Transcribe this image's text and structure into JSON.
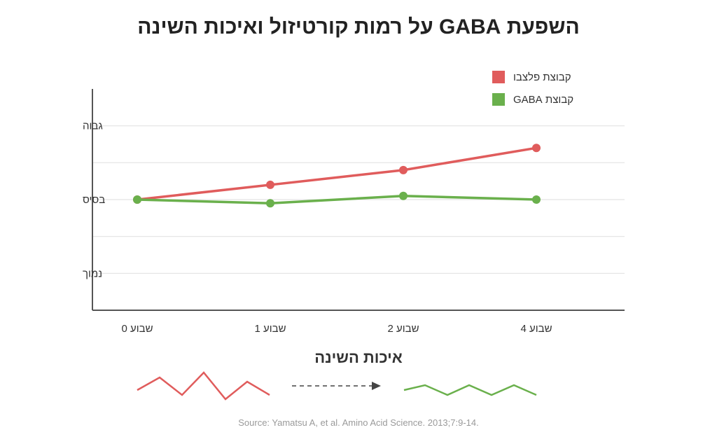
{
  "title": "השפעת GABA על רמות קורטיזול ואיכות השינה",
  "chart_data": {
    "type": "line",
    "categories": [
      "שבוע 0",
      "שבוע 1",
      "שבוע 2",
      "שבוע 4"
    ],
    "y_tick_labels": [
      {
        "label": "גבוה",
        "value": 2
      },
      {
        "label": "בסיס",
        "value": 0
      },
      {
        "label": "נמוך",
        "value": -2
      }
    ],
    "ylim": [
      -3,
      3
    ],
    "grid": true,
    "legend_position": "top-right",
    "series": [
      {
        "name": "קבוצת פלצבו",
        "color": "#e05c5c",
        "values": [
          0,
          0.4,
          0.8,
          1.4
        ]
      },
      {
        "name": "קבוצת GABA",
        "color": "#6ab04c",
        "values": [
          0,
          -0.1,
          0.1,
          0
        ]
      }
    ]
  },
  "sleep_quality": {
    "title": "איכות השינה",
    "placebo_color": "#e05c5c",
    "gaba_color": "#6ab04c",
    "arrow_color": "#444444"
  },
  "source": "Source: Yamatsu A, et al. Amino Acid Science. 2013;7:9-14."
}
